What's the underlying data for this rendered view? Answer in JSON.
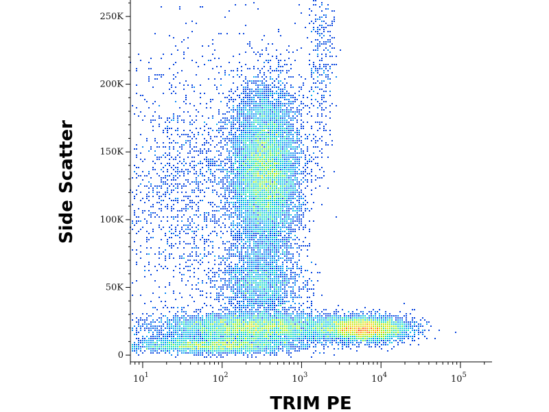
{
  "chart_data": {
    "type": "scatter",
    "xlabel": "TRIM PE",
    "ylabel": "Side Scatter",
    "x_scale": "log",
    "xlim": [
      7,
      250000
    ],
    "ylim": [
      -5000,
      262144
    ],
    "x_ticks": [
      {
        "value": 10,
        "base": "10",
        "exp": "1"
      },
      {
        "value": 100,
        "base": "10",
        "exp": "2"
      },
      {
        "value": 1000,
        "base": "10",
        "exp": "3"
      },
      {
        "value": 10000,
        "base": "10",
        "exp": "4"
      },
      {
        "value": 100000,
        "base": "10",
        "exp": "5"
      }
    ],
    "y_ticks": [
      {
        "value": 0,
        "label": "0"
      },
      {
        "value": 50000,
        "label": "50K"
      },
      {
        "value": 100000,
        "label": "100K"
      },
      {
        "value": 150000,
        "label": "150K"
      },
      {
        "value": 200000,
        "label": "200K"
      },
      {
        "value": 250000,
        "label": "250K"
      }
    ],
    "colormap": [
      "#0000c8",
      "#00a0ff",
      "#00e0c0",
      "#a0f000",
      "#ffd000",
      "#ff2000"
    ],
    "populations": [
      {
        "x_log_center": 2.55,
        "y_center": 135000,
        "x_log_spread": 0.22,
        "y_spread": 32000,
        "count": 9000
      },
      {
        "x_log_center": 2.5,
        "y_center": 52000,
        "x_log_spread": 0.25,
        "y_spread": 13000,
        "count": 1800
      },
      {
        "x_log_center": 3.8,
        "y_center": 19000,
        "x_log_spread": 0.28,
        "y_spread": 4500,
        "count": 4200
      },
      {
        "x_log_center": 2.4,
        "y_center": 20000,
        "x_log_spread": 0.6,
        "y_spread": 5500,
        "count": 5200
      },
      {
        "x_log_center": 1.9,
        "y_center": 7000,
        "x_log_spread": 0.55,
        "y_spread": 3000,
        "count": 2600
      },
      {
        "x_log_center": 1.6,
        "y_center": 120000,
        "x_log_spread": 0.45,
        "y_spread": 50000,
        "count": 1600
      },
      {
        "x_log_center": 3.25,
        "y_center": 215000,
        "x_log_spread": 0.1,
        "y_spread": 35000,
        "count": 350
      }
    ]
  }
}
